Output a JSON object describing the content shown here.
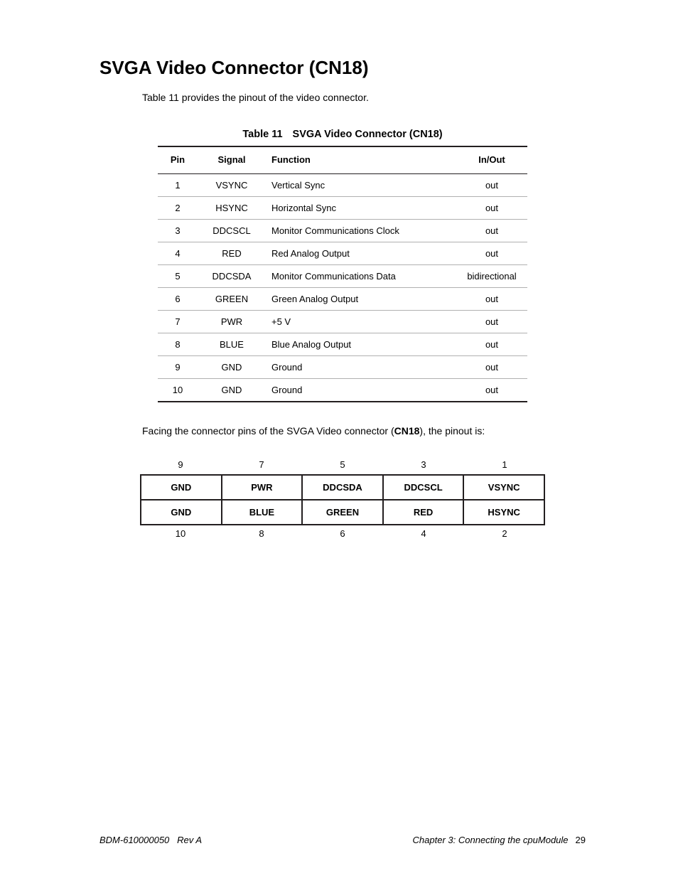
{
  "heading": "SVGA Video Connector (CN18)",
  "intro": "Table 11 provides the pinout of the video connector.",
  "table_caption_label": "Table 11",
  "table_caption_title": "SVGA Video Connector (CN18)",
  "columns": {
    "pin": "Pin",
    "signal": "Signal",
    "function": "Function",
    "io": "In/Out"
  },
  "rows": [
    {
      "pin": "1",
      "signal": "VSYNC",
      "function": "Vertical Sync",
      "io": "out"
    },
    {
      "pin": "2",
      "signal": "HSYNC",
      "function": "Horizontal Sync",
      "io": "out"
    },
    {
      "pin": "3",
      "signal": "DDCSCL",
      "function": "Monitor Communications Clock",
      "io": "out"
    },
    {
      "pin": "4",
      "signal": "RED",
      "function": "Red Analog Output",
      "io": "out"
    },
    {
      "pin": "5",
      "signal": "DDCSDA",
      "function": "Monitor Communications Data",
      "io": "bidirectional"
    },
    {
      "pin": "6",
      "signal": "GREEN",
      "function": "Green  Analog Output",
      "io": "out"
    },
    {
      "pin": "7",
      "signal": "PWR",
      "function": "+5 V",
      "io": "out"
    },
    {
      "pin": "8",
      "signal": "BLUE",
      "function": "Blue Analog Output",
      "io": "out"
    },
    {
      "pin": "9",
      "signal": "GND",
      "function": "Ground",
      "io": "out"
    },
    {
      "pin": "10",
      "signal": "GND",
      "function": "Ground",
      "io": "out"
    }
  ],
  "facing_pre": "Facing the connector pins of the SVGA Video connector (",
  "facing_bold": "CN18",
  "facing_post": "), the pinout is:",
  "connector": {
    "top_nums": [
      "9",
      "7",
      "5",
      "3",
      "1"
    ],
    "row1": [
      "GND",
      "PWR",
      "DDCSDA",
      "DDCSCL",
      "VSYNC"
    ],
    "row2": [
      "GND",
      "BLUE",
      "GREEN",
      "RED",
      "HSYNC"
    ],
    "bottom_nums": [
      "10",
      "8",
      "6",
      "4",
      "2"
    ]
  },
  "footer": {
    "doc": "BDM-610000050",
    "rev": "Rev A",
    "chapter": "Chapter 3:  Connecting the cpuModule",
    "page": "29"
  }
}
